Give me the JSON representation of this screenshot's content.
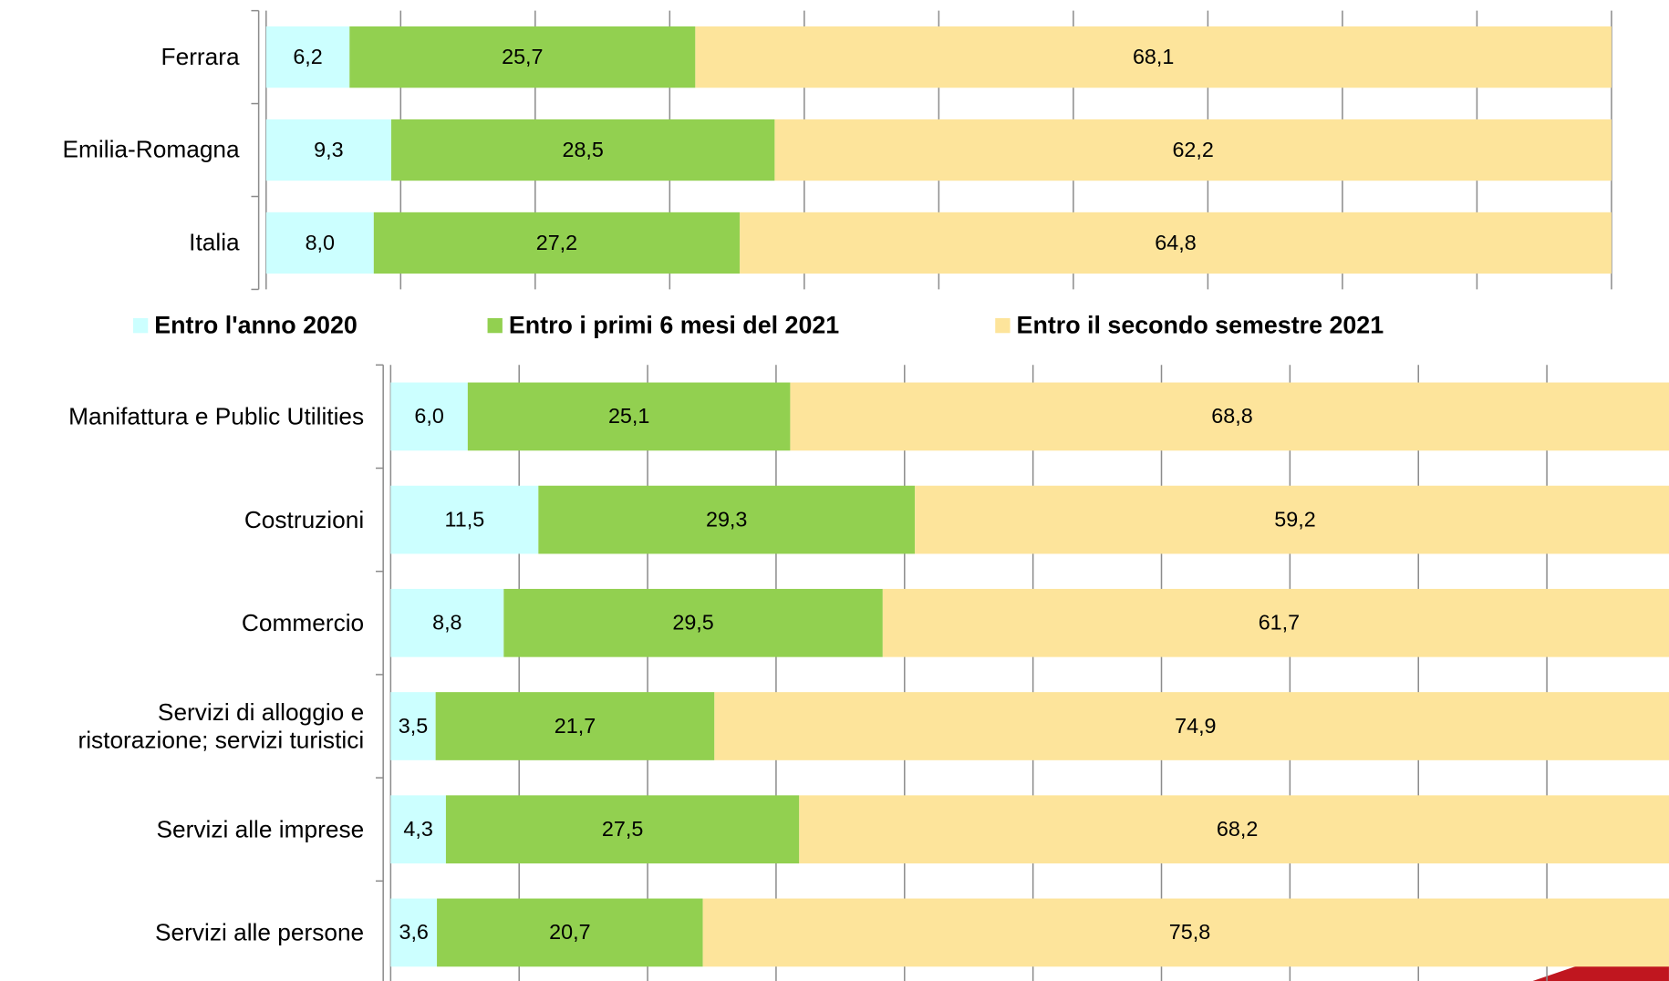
{
  "chart_data": [
    {
      "type": "stacked_hbar",
      "categories": [
        "Ferrara",
        "Emilia-Romagna",
        "Italia"
      ],
      "series": [
        {
          "name": "Entro l'anno 2020",
          "color": "#ccffff",
          "values": [
            6.2,
            9.3,
            8.0
          ],
          "value_labels": [
            "6,2",
            "9,3",
            "8,0"
          ]
        },
        {
          "name": "Entro i primi 6 mesi del 2021",
          "color": "#92d050",
          "values": [
            25.7,
            28.5,
            27.2
          ],
          "value_labels": [
            "25,7",
            "28,5",
            "27,2"
          ]
        },
        {
          "name": "Entro il secondo semestre 2021",
          "color": "#fde49b",
          "values": [
            68.1,
            62.2,
            64.8
          ],
          "value_labels": [
            "68,1",
            "62,2",
            "64,8"
          ]
        }
      ],
      "xlim": [
        0,
        100
      ],
      "xticks": [
        0,
        10,
        20,
        30,
        40,
        50,
        60,
        70,
        80,
        90,
        100
      ],
      "grid": true
    },
    {
      "type": "stacked_hbar",
      "categories": [
        "Manifattura e Public Utilities",
        "Costruzioni",
        "Commercio",
        "Servizi di alloggio e\nristorazione; servizi turistici",
        "Servizi alle imprese",
        "Servizi alle persone"
      ],
      "series": [
        {
          "color": "#ccffff",
          "values": [
            6.0,
            11.5,
            8.8,
            3.5,
            4.3,
            3.6
          ],
          "value_labels": [
            "6,0",
            "11,5",
            "8,8",
            "3,5",
            "4,3",
            "3,6"
          ]
        },
        {
          "color": "#92d050",
          "values": [
            25.1,
            29.3,
            29.5,
            21.7,
            27.5,
            20.7
          ],
          "value_labels": [
            "25,1",
            "29,3",
            "29,5",
            "21,7",
            "27,5",
            "20,7"
          ]
        },
        {
          "color": "#fde49b",
          "values": [
            68.8,
            59.2,
            61.7,
            74.9,
            68.2,
            75.8
          ],
          "value_labels": [
            "68,8",
            "59,2",
            "61,7",
            "74,9",
            "68,2",
            "75,8"
          ]
        }
      ],
      "xlim": [
        0,
        100
      ],
      "xticks": [
        0,
        10,
        20,
        30,
        40,
        50,
        60,
        70,
        80,
        90,
        100
      ],
      "grid": true
    }
  ]
}
